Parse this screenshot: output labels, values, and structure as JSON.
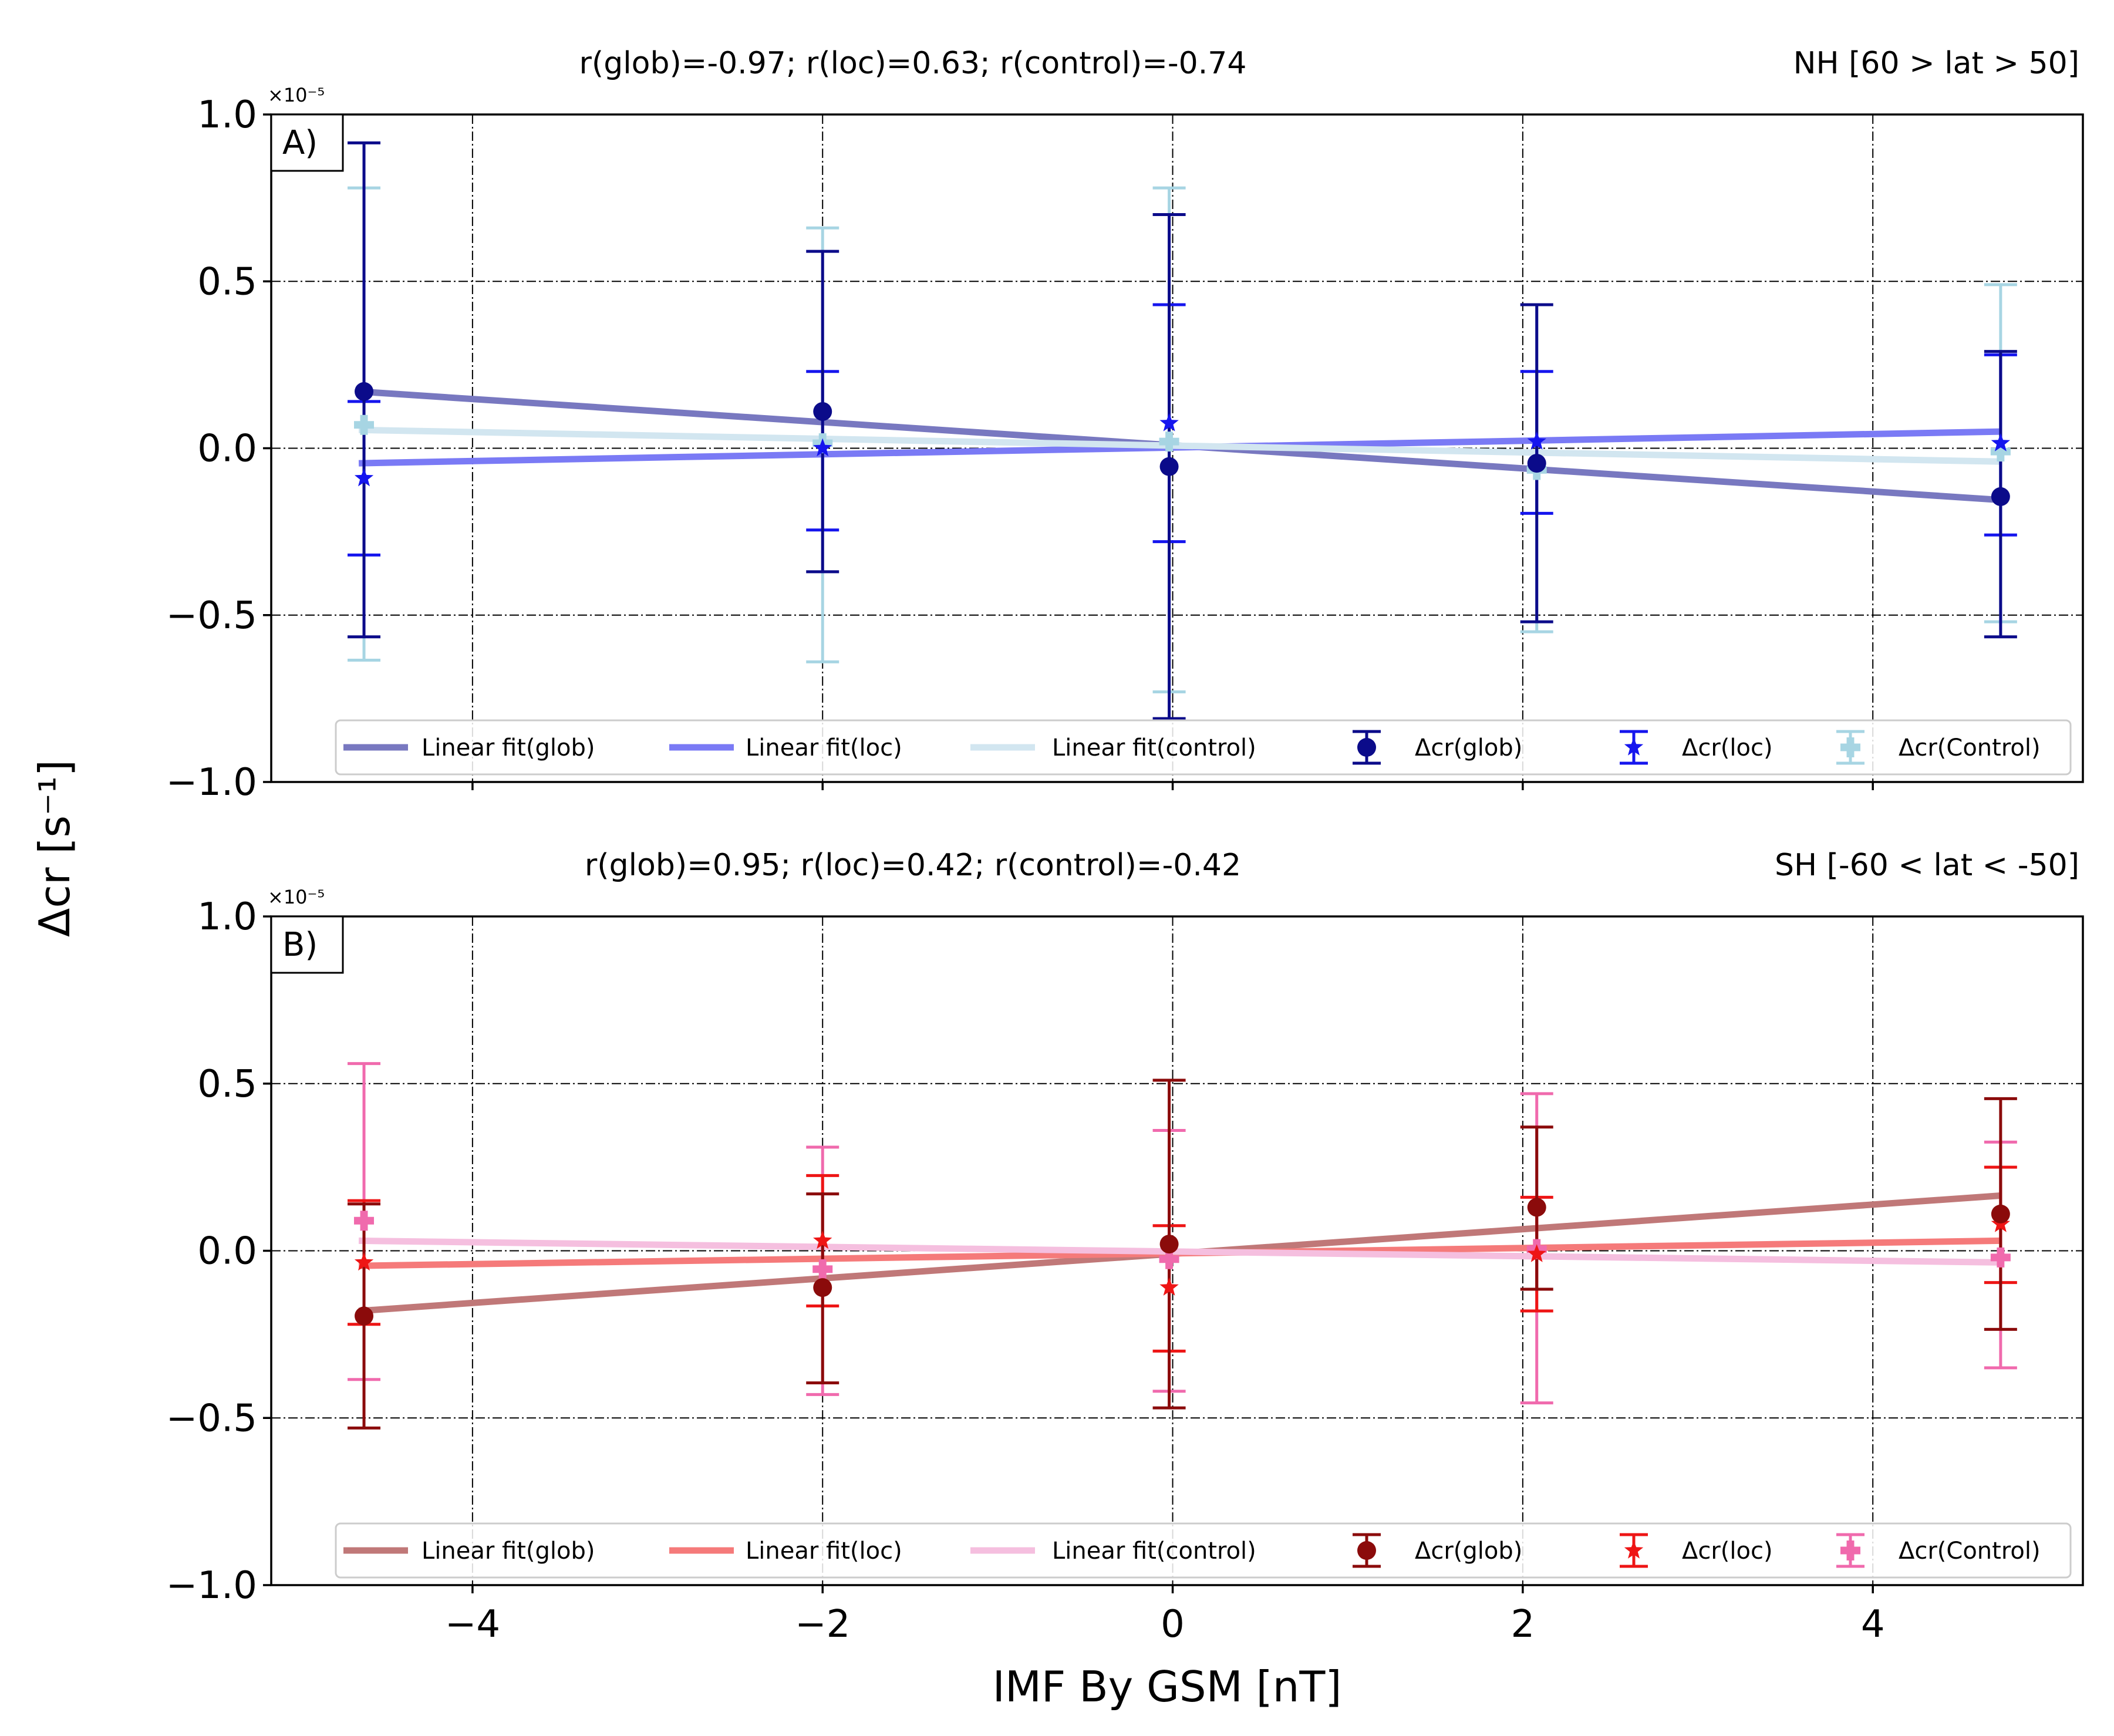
{
  "chart_data": {
    "type": "scatter",
    "xlabel": "IMF By GSM [nT]",
    "ylabel": "Δcr [s⁻¹]",
    "x_ticks": [
      "−4",
      "−2",
      "0",
      "2",
      "4"
    ],
    "x_tick_values": [
      -4,
      -2,
      0,
      2,
      4
    ],
    "xlim": [
      -5.15,
      5.2
    ],
    "panels": [
      {
        "tag": "A)",
        "title": "r(glob)=-0.97; r(loc)=0.63; r(control)=-0.74",
        "region": "NH [60 > lat > 50]",
        "multiplier": "×10⁻⁵",
        "ylim": [
          -1.0,
          1.0
        ],
        "y_ticks": [
          "1.0",
          "0.5",
          "0.0",
          "−0.5",
          "−1.0"
        ],
        "y_tick_values": [
          1.0,
          0.5,
          0.0,
          -0.5,
          -1.0
        ],
        "legend": [
          "Linear fit(glob)",
          "Linear fit(loc)",
          "Linear fit(control)",
          "Δcr(glob)",
          "Δcr(loc)",
          "Δcr(Control)"
        ],
        "fits": [
          {
            "name": "Linear fit(glob)",
            "color": "#7878c0",
            "x": [
              -4.65,
              4.73
            ],
            "y": [
              0.17,
              -0.155
            ]
          },
          {
            "name": "Linear fit(loc)",
            "color": "#7a7af5",
            "x": [
              -4.65,
              4.73
            ],
            "y": [
              -0.045,
              0.05
            ]
          },
          {
            "name": "Linear fit(control)",
            "color": "#d2e6f0",
            "x": [
              -4.65,
              4.73
            ],
            "y": [
              0.055,
              -0.04
            ]
          }
        ],
        "series": [
          {
            "name": "Δcr(glob)",
            "marker": "circle",
            "color": "#0b0b8a",
            "x": [
              -4.62,
              -2.0,
              -0.02,
              2.08,
              4.73
            ],
            "y": [
              0.17,
              0.11,
              -0.055,
              -0.045,
              -0.145
            ],
            "err_low": [
              -0.565,
              -0.37,
              -0.81,
              -0.52,
              -0.565
            ],
            "err_high": [
              0.915,
              0.59,
              0.7,
              0.43,
              0.29
            ]
          },
          {
            "name": "Δcr(loc)",
            "marker": "star",
            "color": "#1515ee",
            "x": [
              -4.62,
              -2.0,
              -0.02,
              2.08,
              4.73
            ],
            "y": [
              -0.09,
              0.0,
              0.075,
              0.02,
              0.015
            ],
            "err_low": [
              -0.32,
              -0.245,
              -0.28,
              -0.195,
              -0.26
            ],
            "err_high": [
              0.14,
              0.23,
              0.43,
              0.23,
              0.28
            ]
          },
          {
            "name": "Δcr(Control)",
            "marker": "plus",
            "color": "#a7d5e3",
            "x": [
              -4.62,
              -2.0,
              -0.02,
              2.08,
              4.73
            ],
            "y": [
              0.07,
              0.015,
              0.02,
              -0.065,
              -0.01
            ],
            "err_low": [
              -0.635,
              -0.64,
              -0.73,
              -0.55,
              -0.52
            ],
            "err_high": [
              0.78,
              0.66,
              0.78,
              0.43,
              0.49
            ]
          }
        ]
      },
      {
        "tag": "B)",
        "title": "r(glob)=0.95; r(loc)=0.42; r(control)=-0.42",
        "region": "SH [-60 < lat < -50]",
        "multiplier": "×10⁻⁵",
        "ylim": [
          -1.0,
          1.0
        ],
        "y_ticks": [
          "1.0",
          "0.5",
          "0.0",
          "−0.5",
          "−1.0"
        ],
        "y_tick_values": [
          1.0,
          0.5,
          0.0,
          -0.5,
          -1.0
        ],
        "legend": [
          "Linear fit(glob)",
          "Linear fit(loc)",
          "Linear fit(control)",
          "Δcr(glob)",
          "Δcr(loc)",
          "Δcr(Control)"
        ],
        "fits": [
          {
            "name": "Linear fit(glob)",
            "color": "#c07878",
            "x": [
              -4.65,
              4.73
            ],
            "y": [
              -0.18,
              0.165
            ]
          },
          {
            "name": "Linear fit(loc)",
            "color": "#f57a7a",
            "x": [
              -4.65,
              4.73
            ],
            "y": [
              -0.045,
              0.03
            ]
          },
          {
            "name": "Linear fit(control)",
            "color": "#f5bfdf",
            "x": [
              -4.65,
              4.73
            ],
            "y": [
              0.03,
              -0.035
            ]
          }
        ],
        "series": [
          {
            "name": "Δcr(glob)",
            "marker": "circle",
            "color": "#8b0b0b",
            "x": [
              -4.62,
              -2.0,
              -0.02,
              2.08,
              4.73
            ],
            "y": [
              -0.195,
              -0.11,
              0.02,
              0.13,
              0.11
            ],
            "err_low": [
              -0.53,
              -0.395,
              -0.47,
              -0.115,
              -0.235
            ],
            "err_high": [
              0.14,
              0.17,
              0.51,
              0.37,
              0.455
            ]
          },
          {
            "name": "Δcr(loc)",
            "marker": "star",
            "color": "#ee1515",
            "x": [
              -4.62,
              -2.0,
              -0.02,
              2.08,
              4.73
            ],
            "y": [
              -0.035,
              0.03,
              -0.11,
              -0.01,
              0.08
            ],
            "err_low": [
              -0.22,
              -0.165,
              -0.3,
              -0.18,
              -0.095
            ],
            "err_high": [
              0.15,
              0.225,
              0.075,
              0.16,
              0.25
            ]
          },
          {
            "name": "Δcr(Control)",
            "marker": "plus",
            "color": "#f06aad",
            "x": [
              -4.62,
              -2.0,
              -0.02,
              2.08,
              4.73
            ],
            "y": [
              0.09,
              -0.055,
              -0.025,
              0.005,
              -0.02
            ],
            "err_low": [
              -0.385,
              -0.43,
              -0.42,
              -0.455,
              -0.35
            ],
            "err_high": [
              0.56,
              0.31,
              0.36,
              0.47,
              0.325
            ]
          }
        ]
      }
    ]
  }
}
